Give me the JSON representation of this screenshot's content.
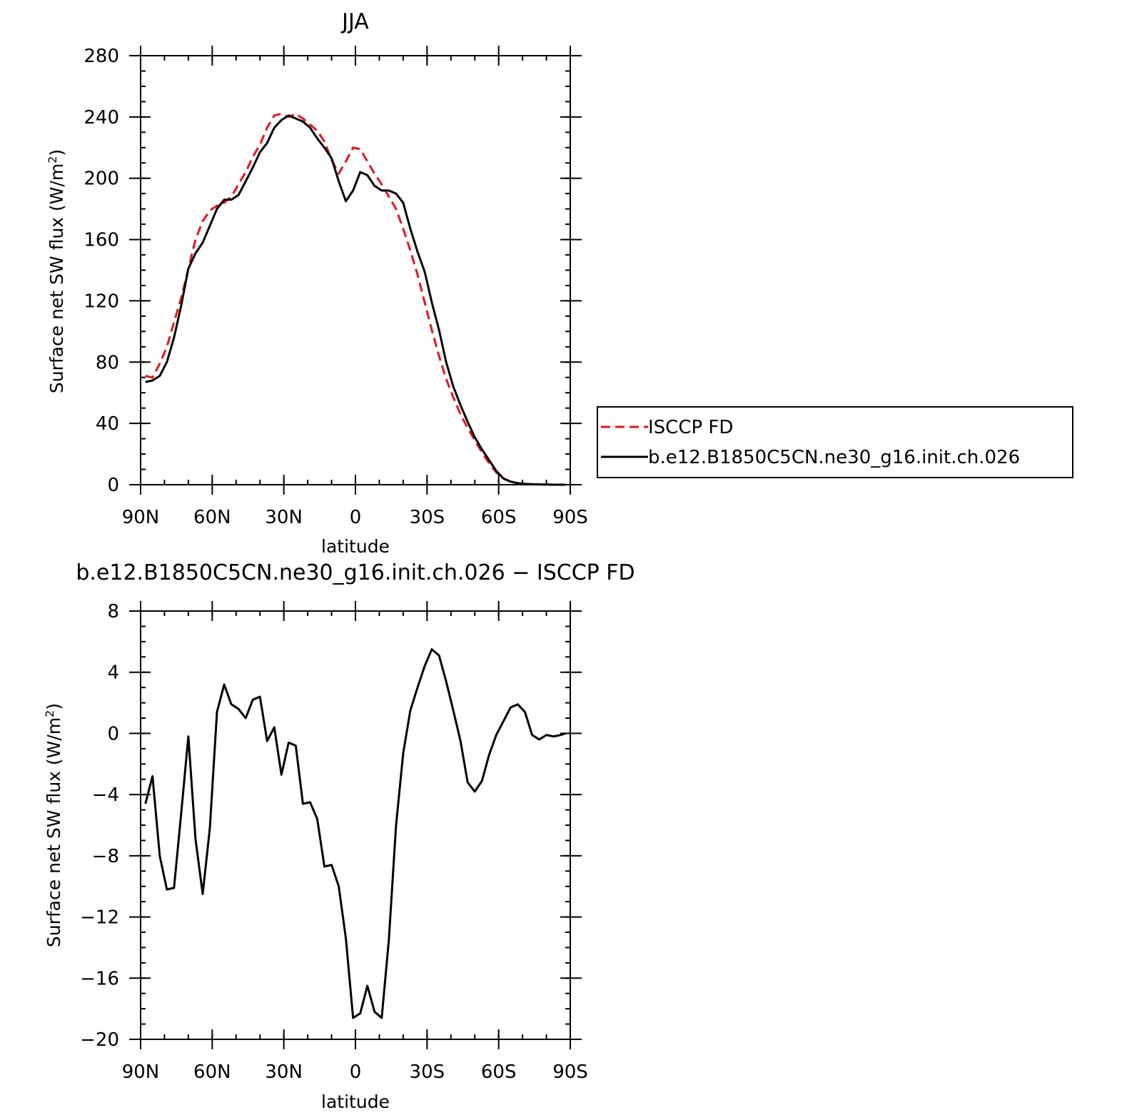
{
  "page": {
    "top_title": "JJA",
    "bottom_title": "b.e12.B1850C5CN.ne30_g16.init.ch.026 − ISCCP FD"
  },
  "chart_data": [
    {
      "type": "line",
      "title": "JJA",
      "xlabel": "latitude",
      "ylabel_prefix": "Surface net SW flux (W/m",
      "ylabel_sup": "2",
      "ylabel_suffix": ")",
      "xlim": [
        90,
        -90
      ],
      "ylim": [
        0,
        280
      ],
      "x_ticks": [
        90,
        60,
        30,
        0,
        -30,
        -60,
        -90
      ],
      "x_tick_labels": [
        "90N",
        "60N",
        "30N",
        "0",
        "30S",
        "60S",
        "90S"
      ],
      "y_ticks": [
        0,
        40,
        80,
        120,
        160,
        200,
        240,
        280
      ],
      "y_tick_labels": [
        "0",
        "40",
        "80",
        "120",
        "160",
        "200",
        "240",
        "280"
      ],
      "legend": {
        "position": "right"
      },
      "x": [
        88,
        85,
        82,
        79,
        76,
        73,
        70,
        67,
        64,
        61,
        58,
        55,
        52,
        49,
        46,
        43,
        40,
        37,
        34,
        31,
        28,
        25,
        22,
        19,
        16,
        13,
        10,
        7,
        4,
        1,
        -2,
        -5,
        -8,
        -11,
        -14,
        -17,
        -20,
        -23,
        -26,
        -29,
        -32,
        -35,
        -38,
        -41,
        -44,
        -47,
        -50,
        -53,
        -56,
        -59,
        -62,
        -65,
        -68,
        -71,
        -74,
        -77,
        -80,
        -83,
        -86,
        -88
      ],
      "series": [
        {
          "name": "ISCCP FD",
          "color": "#e8141b",
          "dash": "dashed",
          "values": [
            71,
            70,
            79,
            90,
            106,
            122,
            141,
            160,
            172,
            179,
            182,
            184,
            188,
            196,
            204,
            214,
            222,
            233,
            241,
            242,
            240,
            242,
            239,
            235,
            231,
            224,
            212,
            203,
            211,
            220,
            219,
            211,
            203,
            196,
            188,
            180,
            167,
            153,
            137,
            119,
            101,
            84,
            69,
            57,
            46,
            37,
            29,
            21,
            14,
            8,
            4,
            2,
            1,
            0.5,
            0.3,
            0.2,
            0.1,
            0,
            0,
            0
          ]
        },
        {
          "name": "b.e12.B1850C5CN.ne30_g16.init.ch.026",
          "color": "#000000",
          "dash": "solid",
          "values": [
            67,
            68,
            71,
            80,
            96,
            117,
            141,
            151,
            158,
            169,
            180,
            186,
            186,
            189,
            198,
            207,
            217,
            223,
            233,
            238,
            241,
            239,
            237,
            233,
            226,
            220,
            213,
            198,
            185,
            192,
            204,
            202,
            195,
            192,
            192,
            190,
            184,
            167,
            152,
            139,
            119,
            101,
            80,
            64,
            52,
            41,
            31,
            23,
            16,
            9,
            4,
            2,
            1,
            0.5,
            0.3,
            0.2,
            0.1,
            0,
            0,
            0
          ]
        }
      ]
    },
    {
      "type": "line",
      "title": "b.e12.B1850C5CN.ne30_g16.init.ch.026 − ISCCP FD",
      "xlabel": "latitude",
      "ylabel_prefix": "Surface net SW flux (W/m",
      "ylabel_sup": "2",
      "ylabel_suffix": ")",
      "xlim": [
        90,
        -90
      ],
      "ylim": [
        -20,
        8
      ],
      "x_ticks": [
        90,
        60,
        30,
        0,
        -30,
        -60,
        -90
      ],
      "x_tick_labels": [
        "90N",
        "60N",
        "30N",
        "0",
        "30S",
        "60S",
        "90S"
      ],
      "y_ticks": [
        -20,
        -16,
        -12,
        -8,
        -4,
        0,
        4,
        8
      ],
      "y_tick_labels": [
        "−20",
        "−16",
        "−12",
        "−8",
        "−4",
        "0",
        "4",
        "8"
      ],
      "x": [
        88,
        85,
        82,
        79,
        76,
        73,
        70,
        67,
        64,
        61,
        58,
        55,
        52,
        49,
        46,
        43,
        40,
        37,
        34,
        31,
        28,
        25,
        22,
        19,
        16,
        13,
        10,
        7,
        4,
        1,
        -2,
        -5,
        -8,
        -11,
        -14,
        -17,
        -20,
        -23,
        -26,
        -29,
        -32,
        -35,
        -38,
        -41,
        -44,
        -47,
        -50,
        -53,
        -56,
        -59,
        -62,
        -65,
        -68,
        -71,
        -74,
        -77,
        -80,
        -83,
        -86,
        -88
      ],
      "series": [
        {
          "name": "",
          "color": "#000000",
          "dash": "solid",
          "values": [
            -4.6,
            -2.8,
            -8.0,
            -10.2,
            -10.1,
            -5.2,
            -0.2,
            -6.9,
            -10.5,
            -6.2,
            1.4,
            3.2,
            1.9,
            1.6,
            1.0,
            2.2,
            2.4,
            -0.5,
            0.4,
            -2.7,
            -0.6,
            -0.8,
            -4.6,
            -4.5,
            -5.6,
            -8.7,
            -8.6,
            -10.0,
            -13.4,
            -18.6,
            -18.3,
            -16.5,
            -18.2,
            -18.6,
            -13.5,
            -6.0,
            -1.3,
            1.5,
            3.0,
            4.4,
            5.5,
            5.1,
            3.4,
            1.5,
            -0.5,
            -3.2,
            -3.8,
            -3.1,
            -1.4,
            -0.1,
            0.8,
            1.7,
            1.9,
            1.4,
            -0.1,
            -0.4,
            -0.1,
            -0.2,
            -0.1,
            0
          ]
        }
      ]
    }
  ]
}
